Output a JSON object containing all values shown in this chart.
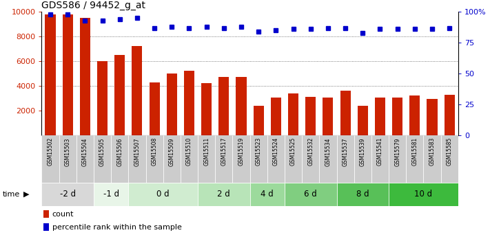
{
  "title": "GDS586 / 94452_g_at",
  "samples": [
    "GSM15502",
    "GSM15503",
    "GSM15504",
    "GSM15505",
    "GSM15506",
    "GSM15507",
    "GSM15508",
    "GSM15509",
    "GSM15510",
    "GSM15511",
    "GSM15517",
    "GSM15519",
    "GSM15523",
    "GSM15524",
    "GSM15525",
    "GSM15532",
    "GSM15534",
    "GSM15537",
    "GSM15539",
    "GSM15541",
    "GSM15579",
    "GSM15581",
    "GSM15583",
    "GSM15585"
  ],
  "counts": [
    9800,
    9800,
    9500,
    6000,
    6500,
    7200,
    4300,
    5000,
    5200,
    4200,
    4700,
    4700,
    2400,
    3050,
    3400,
    3100,
    3050,
    3600,
    2400,
    3050,
    3050,
    3200,
    2950,
    3250
  ],
  "percentiles": [
    98,
    98,
    93,
    93,
    94,
    95,
    87,
    88,
    87,
    88,
    87,
    88,
    84,
    85,
    86,
    86,
    87,
    87,
    83,
    86,
    86,
    86,
    86,
    87
  ],
  "time_groups": [
    {
      "label": "-2 d",
      "start": 0,
      "end": 2,
      "color": "#d8d8d8"
    },
    {
      "label": "-1 d",
      "start": 3,
      "end": 4,
      "color": "#e8f5e8"
    },
    {
      "label": "0 d",
      "start": 5,
      "end": 8,
      "color": "#d0ecd0"
    },
    {
      "label": "2 d",
      "start": 9,
      "end": 11,
      "color": "#b8e4b8"
    },
    {
      "label": "4 d",
      "start": 12,
      "end": 13,
      "color": "#9cda9c"
    },
    {
      "label": "6 d",
      "start": 14,
      "end": 16,
      "color": "#80ce80"
    },
    {
      "label": "8 d",
      "start": 17,
      "end": 19,
      "color": "#58c058"
    },
    {
      "label": "10 d",
      "start": 20,
      "end": 23,
      "color": "#3dba3d"
    }
  ],
  "xtick_box_color": "#cccccc",
  "bar_color": "#cc2200",
  "dot_color": "#0000cc",
  "left_tick_color": "#cc2200",
  "ylim_left": [
    0,
    10000
  ],
  "ylim_right": [
    0,
    100
  ],
  "yticks_left": [
    2000,
    4000,
    6000,
    8000,
    10000
  ],
  "yticks_right": [
    0,
    25,
    50,
    75,
    100
  ],
  "dotted_grid": [
    4000,
    6000,
    8000
  ],
  "bg_color": "#ffffff"
}
